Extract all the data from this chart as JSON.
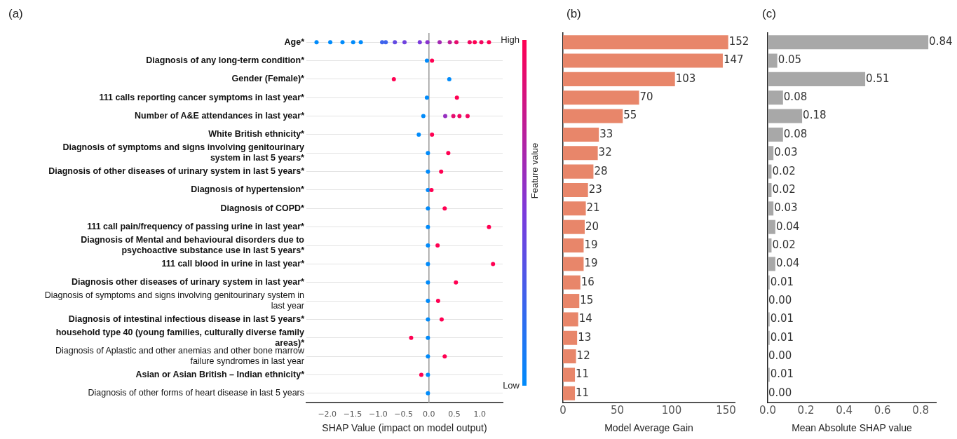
{
  "chart_data": [
    {
      "type": "scatter",
      "title": "(a)",
      "orientation": "horizontal",
      "xlabel": "SHAP Value (impact on model output)",
      "clabel": "Feature value",
      "categories": [
        "Age*",
        "Diagnosis of any long-term condition*",
        "Gender (Female)*",
        "111 calls reporting cancer symptoms in last year*",
        "Number of A&E attendances in last year*",
        "White British ethnicity*",
        "Diagnosis of symptoms and signs involving genitourinary system in last 5 years*",
        "Diagnosis of other diseases of urinary system in last 5 years*",
        "Diagnosis of hypertension*",
        "Diagnosis of COPD*",
        "111 call pain/frequency of passing urine in last year*",
        "Diagnosis of Mental and behavioural disorders due to psychoactive substance use in last 5 years*",
        "111 call blood in urine in last year*",
        "Diagnosis other diseases of urinary system in last year*",
        "Diagnosis of symptoms and signs involving genitourinary system in last year",
        "Diagnosis of intestinal infectious disease in last 5 years*",
        "household type 40 (young families, culturally diverse family areas)*",
        "Diagnosis of Aplastic and other anemias and other bone marrow failure syndromes in last year",
        "Asian or Asian British – Indian ethnicity*",
        "Diagnosis of other forms of heart disease in last 5 years"
      ],
      "series": [
        {
          "type": "scatter",
          "x": [
            "Age*",
            "Age*",
            "Age*",
            "Age*",
            "Age*",
            "Age*",
            "Age*",
            "Age*",
            "Age*",
            "Age*",
            "Age*",
            "Age*",
            "Age*",
            "Age*",
            "Age*",
            "Age*",
            "Age*",
            "Age*",
            "Diagnosis of any long-term condition*",
            "Diagnosis of any long-term condition*",
            "Gender (Female)*",
            "Gender (Female)*",
            "111 calls reporting cancer symptoms in last year*",
            "111 calls reporting cancer symptoms in last year*",
            "Number of A&E attendances in last year*",
            "Number of A&E attendances in last year*",
            "Number of A&E attendances in last year*",
            "Number of A&E attendances in last year*",
            "Number of A&E attendances in last year*",
            "White British ethnicity*",
            "White British ethnicity*",
            "Diagnosis of symptoms and signs involving genitourinary system in last 5 years*",
            "Diagnosis of symptoms and signs involving genitourinary system in last 5 years*",
            "Diagnosis of other diseases of urinary system in last 5 years*",
            "Diagnosis of other diseases of urinary system in last 5 years*",
            "Diagnosis of hypertension*",
            "Diagnosis of hypertension*",
            "Diagnosis of COPD*",
            "Diagnosis of COPD*",
            "111 call pain/frequency of passing urine in last year*",
            "111 call pain/frequency of passing urine in last year*",
            "Diagnosis of Mental and behavioural disorders due to psychoactive substance use in last 5 years*",
            "Diagnosis of Mental and behavioural disorders due to psychoactive substance use in last 5 years*",
            "111 call blood in urine in last year*",
            "111 call blood in urine in last year*",
            "Diagnosis other diseases of urinary system in last year*",
            "Diagnosis other diseases of urinary system in last year*",
            "Diagnosis of symptoms and signs involving genitourinary system in last year",
            "Diagnosis of symptoms and signs involving genitourinary system in last year",
            "Diagnosis of intestinal infectious disease in last 5 years*",
            "Diagnosis of intestinal infectious disease in last 5 years*",
            "household type 40 (young families, culturally diverse family areas)*",
            "household type 40 (young families, culturally diverse family areas)*",
            "Diagnosis of Aplastic and other anemias and other bone marrow failure syndromes in last year",
            "Diagnosis of Aplastic and other anemias and other bone marrow failure syndromes in last year",
            "Asian or Asian British – Indian ethnicity*",
            "Asian or Asian British – Indian ethnicity*",
            "Diagnosis of other forms of heart disease in last 5 years"
          ],
          "values": [
            -2.21,
            -1.94,
            -1.7,
            -1.49,
            -1.34,
            -0.92,
            -0.85,
            -0.67,
            -0.48,
            -0.18,
            -0.03,
            0.21,
            0.41,
            0.54,
            0.8,
            0.9,
            1.03,
            1.18,
            -0.04,
            0.06,
            -0.69,
            0.4,
            -0.04,
            0.55,
            -0.11,
            0.32,
            0.48,
            0.6,
            0.76,
            -0.2,
            0.06,
            -0.02,
            0.38,
            -0.02,
            0.24,
            -0.02,
            0.05,
            -0.02,
            0.31,
            -0.02,
            1.18,
            -0.02,
            0.17,
            -0.02,
            1.26,
            -0.02,
            0.53,
            -0.02,
            0.18,
            -0.02,
            0.25,
            -0.02,
            -0.35,
            -0.02,
            0.31,
            -0.02,
            -0.15,
            -0.02
          ],
          "cvalues": [
            0,
            0,
            0,
            0,
            0,
            0.25,
            0.25,
            0.4,
            0.45,
            0.5,
            0.55,
            0.65,
            0.75,
            0.9,
            0.95,
            1,
            0.95,
            1,
            0,
            1,
            1,
            0,
            0,
            1,
            0,
            0.6,
            0.9,
            0.95,
            0.95,
            0,
            1,
            0,
            1,
            0,
            1,
            0,
            1,
            0,
            1,
            0,
            1,
            0,
            1,
            0,
            1,
            0,
            1,
            0,
            1,
            0,
            1,
            0,
            1,
            0,
            1,
            0,
            1,
            0
          ]
        }
      ],
      "xlim": [
        -2.41,
        1.45
      ],
      "xticks": [
        {
          "value": -2,
          "label": "−2.0"
        },
        {
          "value": -1.5,
          "label": "−1.5"
        },
        {
          "value": -1,
          "label": "−1.0"
        },
        {
          "value": -0.5,
          "label": "−0.5"
        },
        {
          "value": 0,
          "label": "0.0"
        },
        {
          "value": 0.5,
          "label": "0.5"
        },
        {
          "value": 1,
          "label": "1.0"
        }
      ],
      "clim": [
        0,
        1
      ],
      "cticks": [
        {
          "value": 0,
          "label": "Low"
        },
        {
          "value": 1,
          "label": "High"
        }
      ],
      "ref_lines": [
        {
          "axis": "x",
          "value": 0,
          "color": "#999999"
        }
      ],
      "grid": "y"
    },
    {
      "type": "bar",
      "title": "(b)",
      "orientation": "horizontal",
      "xlabel": "Model Average Gain",
      "tick_labels": "x",
      "categories": [
        null,
        null,
        null,
        null,
        null,
        null,
        null,
        null,
        null,
        null,
        null,
        null,
        null,
        null,
        null,
        null,
        null,
        null,
        null,
        null
      ],
      "values": [
        152,
        147,
        103,
        70,
        55,
        33,
        32,
        28,
        23,
        21,
        20,
        19,
        19,
        16,
        15,
        14,
        13,
        12,
        11,
        11
      ],
      "color": "#e8866a",
      "xlim": [
        0,
        158
      ],
      "xticks": [
        0,
        50,
        100,
        150
      ],
      "data_labels": true,
      "grid": "y"
    },
    {
      "type": "bar",
      "title": "(c)",
      "orientation": "horizontal",
      "xlabel": "Mean Absolute SHAP value",
      "tick_labels": "x",
      "categories": [
        null,
        null,
        null,
        null,
        null,
        null,
        null,
        null,
        null,
        null,
        null,
        null,
        null,
        null,
        null,
        null,
        null,
        null,
        null,
        null
      ],
      "values": [
        0.84,
        0.05,
        0.51,
        0.08,
        0.18,
        0.08,
        0.03,
        0.02,
        0.02,
        0.03,
        0.04,
        0.02,
        0.04,
        0.01,
        0,
        0.01,
        0.01,
        0,
        0.01,
        0
      ],
      "value_labels": [
        "0.84",
        "0.05",
        "0.51",
        "0.08",
        "0.18",
        "0.08",
        "0.03",
        "0.02",
        "0.02",
        "0.03",
        "0.04",
        "0.02",
        "0.04",
        "0.01",
        "0.00",
        "0.01",
        "0.01",
        "0.00",
        "0.01",
        "0.00"
      ],
      "color": "#a8a8a8",
      "xlim": [
        0,
        0.88
      ],
      "xticks": [
        {
          "value": 0,
          "label": "0.0"
        },
        0.2,
        0.4,
        0.6,
        0.8
      ],
      "grid": "y"
    }
  ]
}
